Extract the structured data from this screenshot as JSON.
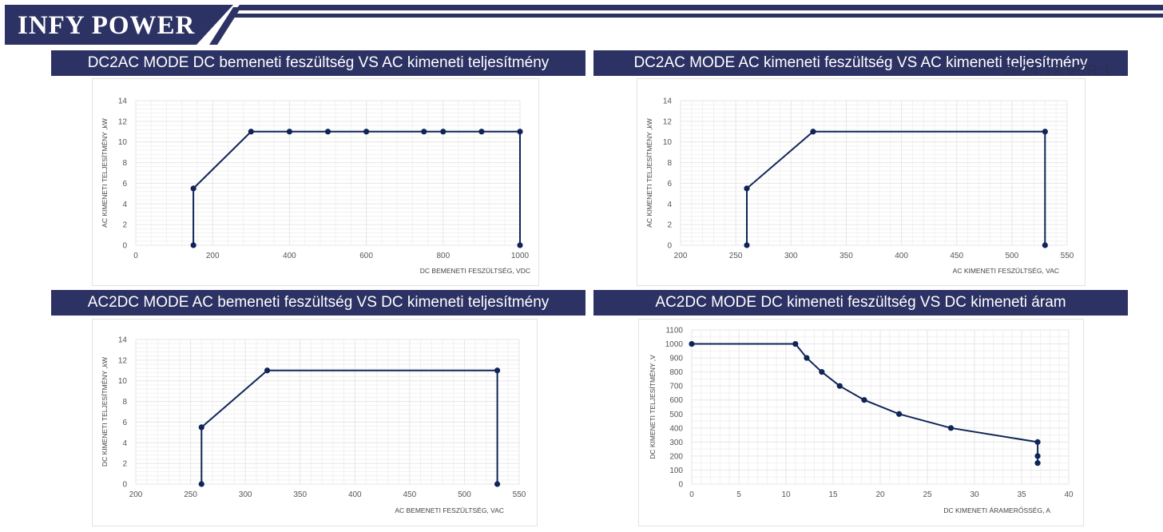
{
  "brand": "INFY POWER",
  "version_text": "2024.12 VER:1",
  "colors": {
    "navy": "#2d3264",
    "series": "#0f2557",
    "grid": "#e6e6e6"
  },
  "charts": [
    {
      "title": "DC2AC MODE DC bemeneti feszültség VS AC kimeneti teljesítmény",
      "chart_data": {
        "type": "line",
        "xlabel": "DC BEMENETI FESZÜLTSÉG, VDC",
        "ylabel": "AC KIMENETI TELJESÍTMÉNY ,kW",
        "xlim": [
          0,
          1000
        ],
        "ylim": [
          0,
          14
        ],
        "xticks": [
          0,
          200,
          400,
          600,
          800,
          1000
        ],
        "yticks": [
          0,
          2,
          4,
          6,
          8,
          10,
          12,
          14
        ],
        "grid": true,
        "points": [
          [
            150,
            0
          ],
          [
            150,
            5.5
          ],
          [
            300,
            11
          ],
          [
            400,
            11
          ],
          [
            500,
            11
          ],
          [
            600,
            11
          ],
          [
            750,
            11
          ],
          [
            800,
            11
          ],
          [
            900,
            11
          ],
          [
            1000,
            11
          ],
          [
            1000,
            0
          ]
        ]
      }
    },
    {
      "title": "DC2AC MODE AC kimeneti feszültség VS AC kimeneti teljesítmény",
      "chart_data": {
        "type": "line",
        "xlabel": "AC KIMENETI FESZÜLTSÉG, VAC",
        "ylabel": "AC KIMENETI TELJESÍTMÉNY ,kW",
        "xlim": [
          200,
          550
        ],
        "ylim": [
          0,
          14
        ],
        "xticks": [
          200,
          250,
          300,
          350,
          400,
          450,
          500,
          550
        ],
        "yticks": [
          0,
          2,
          4,
          6,
          8,
          10,
          12,
          14
        ],
        "grid": true,
        "points": [
          [
            260,
            0
          ],
          [
            260,
            5.5
          ],
          [
            320,
            11
          ],
          [
            530,
            11
          ],
          [
            530,
            0
          ]
        ]
      }
    },
    {
      "title": "AC2DC MODE AC bemeneti feszültség VS DC kimeneti teljesítmény",
      "chart_data": {
        "type": "line",
        "xlabel": "AC BEMENETI FESZÜLTSÉG, VAC",
        "ylabel": "DC KIMENETI TELJESÍTMÉNY ,kW",
        "xlim": [
          200,
          550
        ],
        "ylim": [
          0,
          14
        ],
        "xticks": [
          200,
          250,
          300,
          350,
          400,
          450,
          500,
          550
        ],
        "yticks": [
          0,
          2,
          4,
          6,
          8,
          10,
          12,
          14
        ],
        "grid": true,
        "points": [
          [
            260,
            0
          ],
          [
            260,
            5.5
          ],
          [
            320,
            11
          ],
          [
            530,
            11
          ],
          [
            530,
            0
          ]
        ]
      }
    },
    {
      "title": "AC2DC MODE DC kimeneti feszültség VS DC kimeneti áram",
      "chart_data": {
        "type": "line",
        "xlabel": "DC KIMENETI ÁRAMERŐSSÉG, A",
        "ylabel": "DC KIMENETI TELJESÍTMÉNY ,V",
        "xlim": [
          0,
          40
        ],
        "ylim": [
          0,
          1100
        ],
        "xticks": [
          0,
          5,
          10,
          15,
          20,
          25,
          30,
          35,
          40
        ],
        "yticks": [
          0,
          100,
          200,
          300,
          400,
          500,
          600,
          700,
          800,
          900,
          1000,
          1100
        ],
        "grid": true,
        "points": [
          [
            0,
            1000
          ],
          [
            11,
            1000
          ],
          [
            12.2,
            900
          ],
          [
            13.8,
            800
          ],
          [
            15.7,
            700
          ],
          [
            18.3,
            600
          ],
          [
            22,
            500
          ],
          [
            27.5,
            400
          ],
          [
            36.7,
            300
          ],
          [
            36.7,
            200
          ],
          [
            36.7,
            150
          ]
        ]
      }
    }
  ]
}
